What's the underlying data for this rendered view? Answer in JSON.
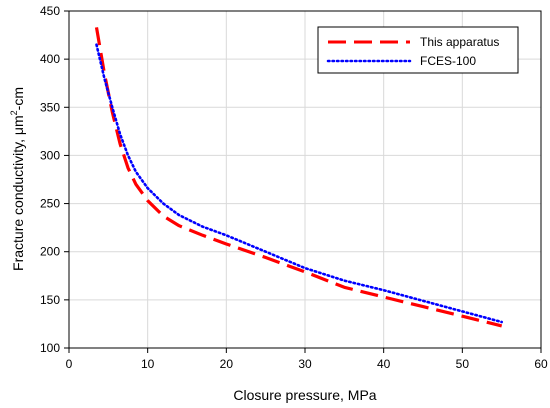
{
  "chart_data": {
    "type": "line",
    "xlabel": "Closure pressure, MPa",
    "ylabel_main": "Fracture conductivity, μm",
    "ylabel_sup": "2",
    "ylabel_tail": "-cm",
    "xlim": [
      0,
      60
    ],
    "ylim": [
      100,
      450
    ],
    "xticks": [
      0,
      10,
      20,
      30,
      40,
      50,
      60
    ],
    "yticks": [
      100,
      150,
      200,
      250,
      300,
      350,
      400,
      450
    ],
    "grid": true,
    "legend_position": "top-right",
    "series": [
      {
        "name": "This apparatus",
        "color": "#ff0000",
        "style": "dashed",
        "x": [
          3.5,
          4.5,
          5.5,
          6.5,
          7.5,
          8.5,
          10,
          12,
          14,
          17,
          20,
          25,
          30,
          35,
          40,
          45,
          50,
          55
        ],
        "y": [
          433,
          385,
          345,
          312,
          287,
          270,
          253,
          237,
          227,
          217,
          208,
          194,
          179,
          163,
          153,
          143,
          133,
          123
        ]
      },
      {
        "name": "FCES-100",
        "color": "#0000ff",
        "style": "dotted",
        "x": [
          3.5,
          4.5,
          5.5,
          6.5,
          7.5,
          8.5,
          10,
          12,
          14,
          17,
          20,
          25,
          30,
          35,
          40,
          45,
          50,
          55
        ],
        "y": [
          415,
          380,
          350,
          322,
          300,
          283,
          266,
          250,
          238,
          226,
          217,
          200,
          183,
          170,
          160,
          149,
          138,
          127
        ]
      }
    ]
  }
}
